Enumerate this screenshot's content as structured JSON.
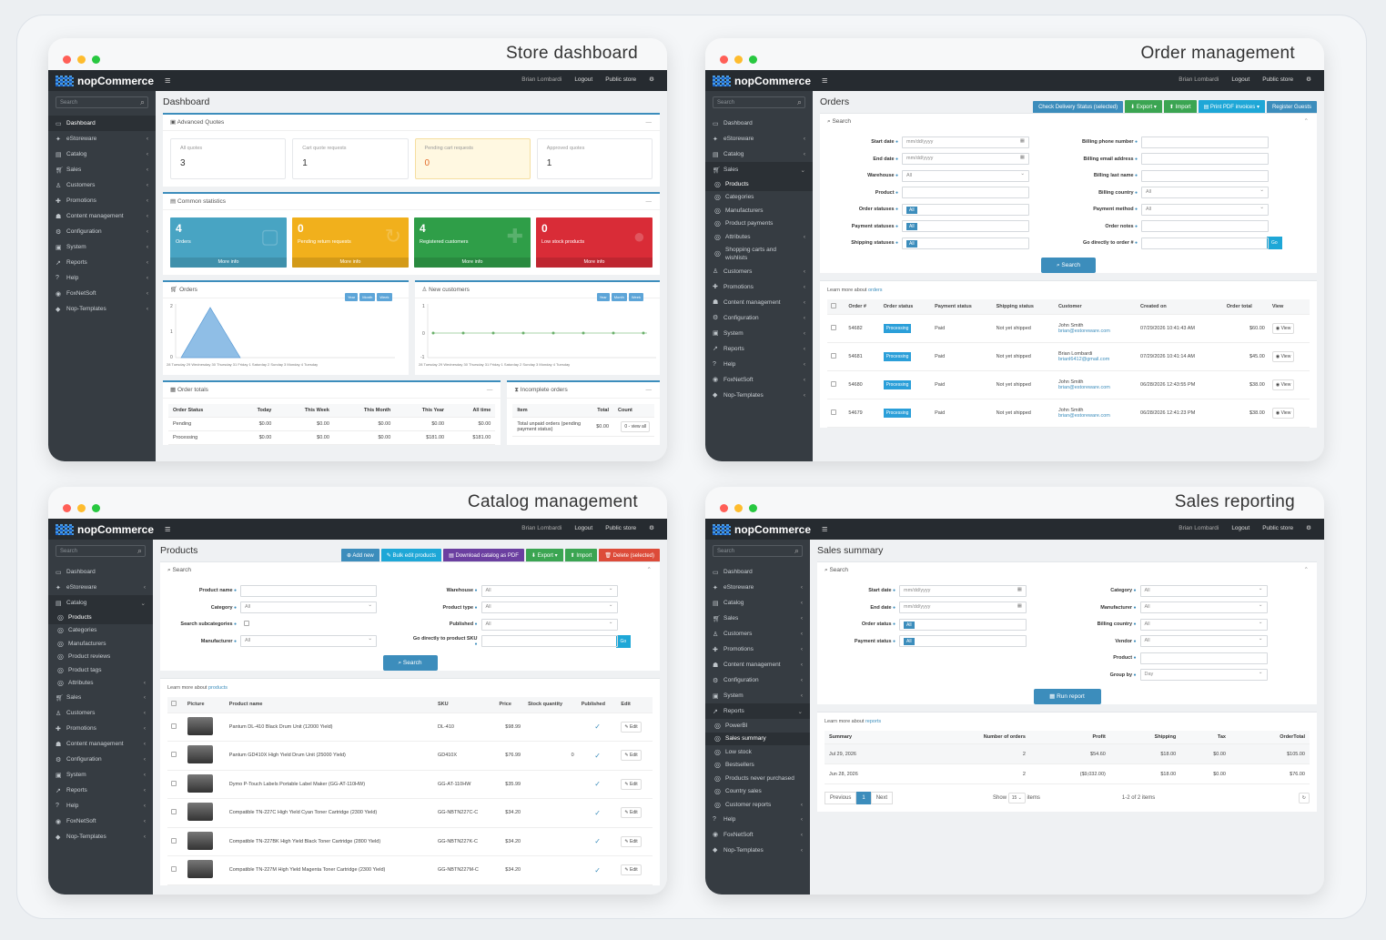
{
  "brand": "nopCommerce",
  "topbar": {
    "user": "Brian Lombardi",
    "logout": "Logout",
    "public": "Public store"
  },
  "search_ph": "Search",
  "dash": {
    "title": "Store dashboard",
    "page": "Dashboard",
    "nav": [
      "Dashboard",
      "eStoreware",
      "Catalog",
      "Sales",
      "Customers",
      "Promotions",
      "Content management",
      "Configuration",
      "System",
      "Reports",
      "Help",
      "FoxNetSoft",
      "Nop-Templates"
    ],
    "aq": {
      "title": "Advanced Quotes",
      "boxes": [
        {
          "l": "All quotes",
          "v": "3"
        },
        {
          "l": "Cart quote requests",
          "v": "1"
        },
        {
          "l": "Pending cart requests",
          "v": "0"
        },
        {
          "l": "Approved quotes",
          "v": "1"
        }
      ]
    },
    "cs": {
      "title": "Common statistics",
      "boxes": [
        {
          "v": "4",
          "l": "Orders",
          "mi": "More info"
        },
        {
          "v": "0",
          "l": "Pending return requests",
          "mi": "More info"
        },
        {
          "v": "4",
          "l": "Registered customers",
          "mi": "More info"
        },
        {
          "v": "0",
          "l": "Low stock products",
          "mi": "More info"
        }
      ]
    },
    "orders_chart": {
      "title": "Orders",
      "chips": [
        "Year",
        "Month",
        "Week"
      ]
    },
    "cust_chart": {
      "title": "New customers",
      "chips": [
        "Year",
        "Month",
        "Week"
      ]
    },
    "ot": {
      "title": "Order totals",
      "head": [
        "Order Status",
        "Today",
        "This Week",
        "This Month",
        "This Year",
        "All time"
      ],
      "rows": [
        [
          "Pending",
          "$0.00",
          "$0.00",
          "$0.00",
          "$0.00",
          "$0.00"
        ],
        [
          "Processing",
          "$0.00",
          "$0.00",
          "$0.00",
          "$181.00",
          "$181.00"
        ]
      ]
    },
    "io": {
      "title": "Incomplete orders",
      "head": [
        "Item",
        "Total",
        "Count"
      ],
      "row": [
        "Total unpaid orders (pending payment status)",
        "$0.00",
        "0 - view all"
      ]
    }
  },
  "orders": {
    "title": "Order management",
    "page": "Orders",
    "btns": [
      "Check Delivery Status (selected)",
      "Export",
      "Import",
      "Print PDF invoices",
      "Register Guests"
    ],
    "nav": [
      "Dashboard",
      "eStoreware",
      "Catalog",
      "Sales",
      "Products",
      "Categories",
      "Manufacturers",
      "Product payments",
      "Attributes",
      "Shopping carts and wishlists",
      "Customers",
      "Promotions",
      "Content management",
      "Configuration",
      "System",
      "Reports",
      "Help",
      "FoxNetSoft",
      "Nop-Templates"
    ],
    "search": "Search",
    "left": [
      {
        "l": "Start date",
        "v": "mm/dd/yyyy"
      },
      {
        "l": "End date",
        "v": "mm/dd/yyyy"
      },
      {
        "l": "Warehouse",
        "v": "All"
      },
      {
        "l": "Product",
        "v": ""
      },
      {
        "l": "Order statuses",
        "v": "All"
      },
      {
        "l": "Payment statuses",
        "v": "All"
      },
      {
        "l": "Shipping statuses",
        "v": "All"
      }
    ],
    "right": [
      {
        "l": "Billing phone number",
        "v": ""
      },
      {
        "l": "Billing email address",
        "v": ""
      },
      {
        "l": "Billing last name",
        "v": ""
      },
      {
        "l": "Billing country",
        "v": "All"
      },
      {
        "l": "Payment method",
        "v": "All"
      },
      {
        "l": "Order notes",
        "v": ""
      },
      {
        "l": "Go directly to order #",
        "v": ""
      }
    ],
    "go": "Go",
    "learn": "Learn more about",
    "learn_link": "orders",
    "head": [
      "Order #",
      "Order status",
      "Payment status",
      "Shipping status",
      "Customer",
      "Created on",
      "Order total",
      "View"
    ],
    "rows": [
      {
        "n": "54682",
        "s": "Processing",
        "p": "Paid",
        "sh": "Not yet shipped",
        "c": "John Smith",
        "e": "brian@estoreware.com",
        "d": "07/29/2026 10:41:43 AM",
        "t": "$60.00"
      },
      {
        "n": "54681",
        "s": "Processing",
        "p": "Paid",
        "sh": "Not yet shipped",
        "c": "Brian Lombardi",
        "e": "brianl6412@gmail.com",
        "d": "07/29/2026 10:41:14 AM",
        "t": "$45.00"
      },
      {
        "n": "54680",
        "s": "Processing",
        "p": "Paid",
        "sh": "Not yet shipped",
        "c": "John Smith",
        "e": "brian@estoreware.com",
        "d": "06/28/2026 12:43:55 PM",
        "t": "$38.00"
      },
      {
        "n": "54679",
        "s": "Processing",
        "p": "Paid",
        "sh": "Not yet shipped",
        "c": "John Smith",
        "e": "brian@estoreware.com",
        "d": "06/28/2026 12:41:23 PM",
        "t": "$38.00"
      }
    ],
    "view": "View"
  },
  "catalog": {
    "title": "Catalog management",
    "page": "Products",
    "btns": [
      "Add new",
      "Bulk edit products",
      "Download catalog as PDF",
      "Export",
      "Import",
      "Delete (selected)"
    ],
    "nav": [
      "Dashboard",
      "eStoreware",
      "Catalog",
      "Products",
      "Categories",
      "Manufacturers",
      "Product reviews",
      "Product tags",
      "Attributes",
      "Sales",
      "Customers",
      "Promotions",
      "Content management",
      "Configuration",
      "System",
      "Reports",
      "Help",
      "FoxNetSoft",
      "Nop-Templates"
    ],
    "left": [
      {
        "l": "Product name",
        "v": ""
      },
      {
        "l": "Category",
        "v": "All"
      },
      {
        "l": "Search subcategories",
        "v": ""
      },
      {
        "l": "Manufacturer",
        "v": "All"
      }
    ],
    "right": [
      {
        "l": "Warehouse",
        "v": "All"
      },
      {
        "l": "Product type",
        "v": "All"
      },
      {
        "l": "Published",
        "v": "All"
      },
      {
        "l": "Go directly to product SKU",
        "v": ""
      }
    ],
    "learn_link": "products",
    "head": [
      "Picture",
      "Product name",
      "SKU",
      "Price",
      "Stock quantity",
      "Published",
      "Edit"
    ],
    "rows": [
      {
        "n": "Pantum DL-410 Black Drum Unit (12000 Yield)",
        "sku": "DL-410",
        "p": "$98.99",
        "q": ""
      },
      {
        "n": "Pantum GD410X High Yield Drum Unit (25000 Yield)",
        "sku": "GD410X",
        "p": "$76.99",
        "q": "0"
      },
      {
        "n": "Dymo P-Touch Labels Portable Label Maker (GG-AT-110HW)",
        "sku": "GG-AT-110HW",
        "p": "$35.99",
        "q": ""
      },
      {
        "n": "Compatible TN-227C High Yield Cyan Toner Cartridge (2300 Yield)",
        "sku": "GG-NBTN227C-C",
        "p": "$34.20",
        "q": ""
      },
      {
        "n": "Compatible TN-227BK High Yield Black Toner Cartridge (2800 Yield)",
        "sku": "GG-NBTN227K-C",
        "p": "$34.20",
        "q": ""
      },
      {
        "n": "Compatible TN-227M High Yield Magenta Toner Cartridge (2300 Yield)",
        "sku": "GG-NBTN227M-C",
        "p": "$34.20",
        "q": ""
      }
    ],
    "edit": "Edit"
  },
  "sales": {
    "title": "Sales reporting",
    "page": "Sales summary",
    "nav": [
      "Dashboard",
      "eStoreware",
      "Catalog",
      "Sales",
      "Customers",
      "Promotions",
      "Content management",
      "Configuration",
      "System",
      "Reports",
      "PowerBI",
      "Sales summary",
      "Low stock",
      "Bestsellers",
      "Products never purchased",
      "Country sales",
      "Customer reports",
      "Help",
      "FoxNetSoft",
      "Nop-Templates"
    ],
    "left": [
      {
        "l": "Start date",
        "v": "mm/dd/yyyy"
      },
      {
        "l": "End date",
        "v": "mm/dd/yyyy"
      },
      {
        "l": "Order status",
        "v": "All"
      },
      {
        "l": "Payment status",
        "v": "All"
      }
    ],
    "right": [
      {
        "l": "Category",
        "v": "All"
      },
      {
        "l": "Manufacturer",
        "v": "All"
      },
      {
        "l": "Billing country",
        "v": "All"
      },
      {
        "l": "Vendor",
        "v": "All"
      },
      {
        "l": "Product",
        "v": ""
      },
      {
        "l": "Group by",
        "v": "Day"
      }
    ],
    "run": "Run report",
    "learn_link": "reports",
    "head": [
      "Summary",
      "Number of orders",
      "Profit",
      "Shipping",
      "Tax",
      "OrderTotal"
    ],
    "rows": [
      [
        "Jul 29, 2026",
        "2",
        "$54.60",
        "$18.00",
        "$0.00",
        "$105.00"
      ],
      [
        "Jun 28, 2026",
        "2",
        "($9,032.00)",
        "$18.00",
        "$0.00",
        "$76.00"
      ]
    ],
    "prev": "Previous",
    "page_num": "1",
    "next": "Next",
    "show": "Show",
    "size": "15",
    "items": "items",
    "range": "1-2 of 2 items"
  },
  "colors": {
    "blue": "#3c8dbc",
    "teal": "#48a4c3",
    "amber": "#f1b01c",
    "green": "#2f9e48",
    "red": "#d92c37"
  }
}
